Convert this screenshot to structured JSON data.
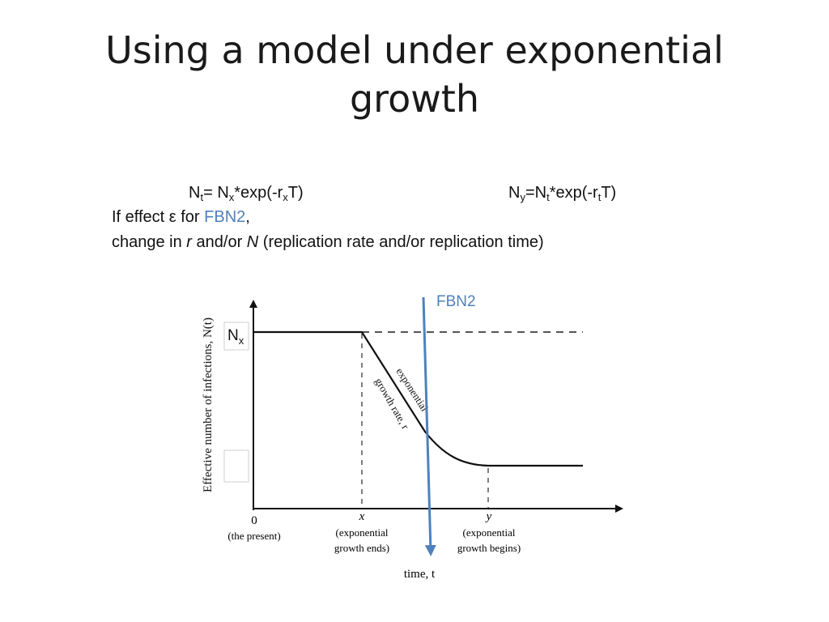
{
  "slide": {
    "title_line1": "Using a model under exponential",
    "title_line2": "growth"
  },
  "equations": {
    "left": {
      "base": "N",
      "sub1": "t",
      "mid": "= N",
      "sub2": "x",
      "mid2": "*exp(-r",
      "sub3": "x",
      "tail": "T)"
    },
    "right": {
      "base": "N",
      "sub1": "y",
      "mid": "=N",
      "sub2": "t",
      "mid2": "*exp(-r",
      "sub3": "t",
      "tail": "T)"
    }
  },
  "effect_line": {
    "prefix": "If effect ε for ",
    "gene": "FBN2",
    "suffix": ","
  },
  "change_line": {
    "prefix": "change in ",
    "r": "r",
    "middle": " and/or ",
    "n": "N",
    "suffix": " (replication rate and/or replication time)"
  },
  "diagram": {
    "fbn2_label": "FBN2",
    "nx_label": {
      "base": "N",
      "sub": "x"
    },
    "y_axis_label": "Effective number of infections, N(t)",
    "curve_label_1": "exponential",
    "curve_label_2": "growth rate, r",
    "x_ticks": [
      {
        "symbol": "0",
        "line1": "(the present)",
        "line2": ""
      },
      {
        "symbol": "x",
        "line1": "(exponential",
        "line2": "growth ends)"
      },
      {
        "symbol": "y",
        "line1": "(exponential",
        "line2": "growth begins)"
      }
    ],
    "x_axis_label": "time, t"
  },
  "colors": {
    "accent_blue": "#4f81bd",
    "axis": "#111111",
    "dashed": "#555555"
  }
}
